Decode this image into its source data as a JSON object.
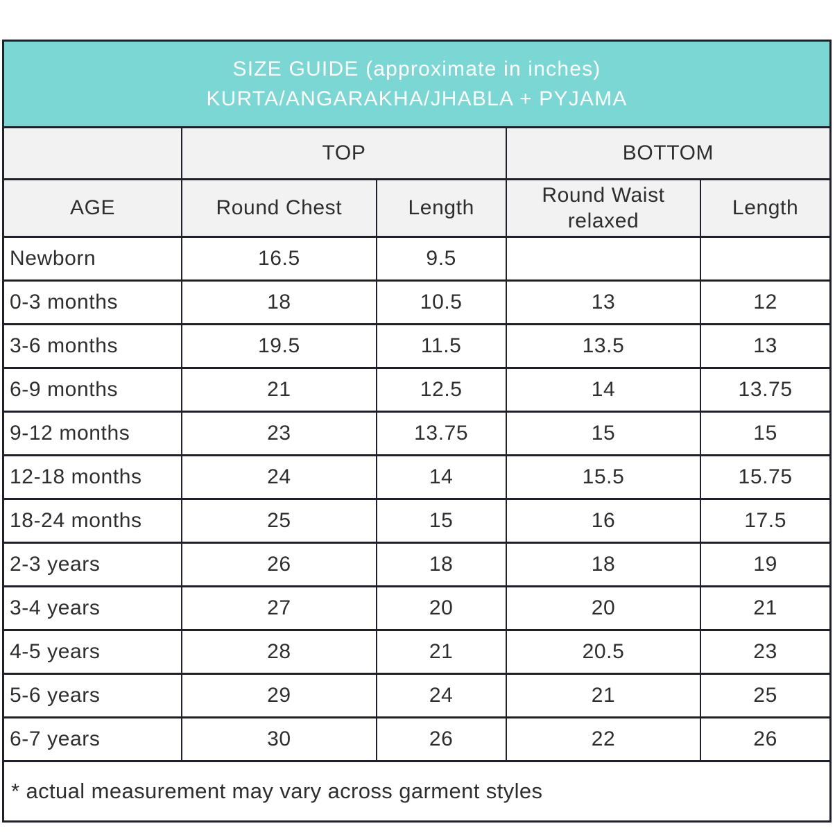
{
  "accent_color": "#7ad7d3",
  "header_bg_color": "#f2f2f2",
  "border_color": "#20202a",
  "title": {
    "line1": "SIZE GUIDE (approximate in inches)",
    "line2": "KURTA/ANGARAKHA/JHABLA + PYJAMA"
  },
  "columns": {
    "age": "AGE",
    "top_group": "TOP",
    "bottom_group": "BOTTOM",
    "top_chest": "Round Chest",
    "top_length": "Length",
    "bottom_waist": "Round Waist relaxed",
    "bottom_length": "Length"
  },
  "rows": [
    {
      "age": "Newborn",
      "top_chest": "16.5",
      "top_length": "9.5",
      "bottom_waist": "",
      "bottom_length": ""
    },
    {
      "age": "0-3 months",
      "top_chest": "18",
      "top_length": "10.5",
      "bottom_waist": "13",
      "bottom_length": "12"
    },
    {
      "age": "3-6 months",
      "top_chest": "19.5",
      "top_length": "11.5",
      "bottom_waist": "13.5",
      "bottom_length": "13"
    },
    {
      "age": "6-9 months",
      "top_chest": "21",
      "top_length": "12.5",
      "bottom_waist": "14",
      "bottom_length": "13.75"
    },
    {
      "age": "9-12 months",
      "top_chest": "23",
      "top_length": "13.75",
      "bottom_waist": "15",
      "bottom_length": "15"
    },
    {
      "age": "12-18 months",
      "top_chest": "24",
      "top_length": "14",
      "bottom_waist": "15.5",
      "bottom_length": "15.75"
    },
    {
      "age": "18-24 months",
      "top_chest": "25",
      "top_length": "15",
      "bottom_waist": "16",
      "bottom_length": "17.5"
    },
    {
      "age": "2-3 years",
      "top_chest": "26",
      "top_length": "18",
      "bottom_waist": "18",
      "bottom_length": "19"
    },
    {
      "age": "3-4 years",
      "top_chest": "27",
      "top_length": "20",
      "bottom_waist": "20",
      "bottom_length": "21"
    },
    {
      "age": "4-5 years",
      "top_chest": "28",
      "top_length": "21",
      "bottom_waist": "20.5",
      "bottom_length": "23"
    },
    {
      "age": "5-6 years",
      "top_chest": "29",
      "top_length": "24",
      "bottom_waist": "21",
      "bottom_length": "25"
    },
    {
      "age": "6-7 years",
      "top_chest": "30",
      "top_length": "26",
      "bottom_waist": "22",
      "bottom_length": "26"
    }
  ],
  "footnote": "* actual measurement may vary across garment styles",
  "chart_data": {
    "type": "table",
    "title": "SIZE GUIDE (approximate in inches) KURTA/ANGARAKHA/JHABLA + PYJAMA",
    "column_groups": [
      "",
      "TOP",
      "TOP",
      "BOTTOM",
      "BOTTOM"
    ],
    "columns": [
      "AGE",
      "Round Chest",
      "Length",
      "Round Waist relaxed",
      "Length"
    ],
    "rows": [
      [
        "Newborn",
        16.5,
        9.5,
        null,
        null
      ],
      [
        "0-3 months",
        18,
        10.5,
        13,
        12
      ],
      [
        "3-6 months",
        19.5,
        11.5,
        13.5,
        13
      ],
      [
        "6-9 months",
        21,
        12.5,
        14,
        13.75
      ],
      [
        "9-12 months",
        23,
        13.75,
        15,
        15
      ],
      [
        "12-18 months",
        24,
        14,
        15.5,
        15.75
      ],
      [
        "18-24 months",
        25,
        15,
        16,
        17.5
      ],
      [
        "2-3 years",
        26,
        18,
        18,
        19
      ],
      [
        "3-4 years",
        27,
        20,
        20,
        21
      ],
      [
        "4-5 years",
        28,
        21,
        20.5,
        23
      ],
      [
        "5-6 years",
        29,
        24,
        21,
        25
      ],
      [
        "6-7 years",
        30,
        26,
        22,
        26
      ]
    ],
    "units": "inches",
    "footnote": "* actual measurement may vary across garment styles"
  }
}
